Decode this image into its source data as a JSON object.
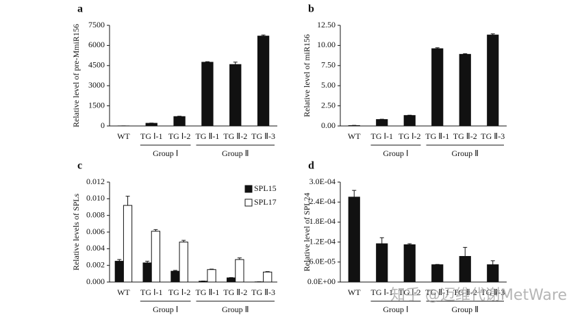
{
  "chart_data": [
    {
      "type": "bar",
      "panel": "a",
      "ylabel": "Relative level of pre-MmiR156",
      "categories": [
        "WT",
        "TG Ⅰ-1",
        "TG Ⅰ-2",
        "TG Ⅱ-1",
        "TG Ⅱ-2",
        "TG Ⅱ-3"
      ],
      "values": [
        5,
        200,
        700,
        4750,
        4580,
        6700
      ],
      "errors": [
        2,
        15,
        30,
        40,
        180,
        80
      ],
      "color": "#111111",
      "ylim": [
        0,
        7500
      ],
      "yticks": [
        0,
        1500,
        3000,
        4500,
        6000,
        7500
      ],
      "groups": [
        {
          "label": "Group Ⅰ",
          "categories": [
            "TG Ⅰ-1",
            "TG Ⅰ-2"
          ]
        },
        {
          "label": "Group Ⅱ",
          "categories": [
            "TG Ⅱ-1",
            "TG Ⅱ-2",
            "TG Ⅱ-3"
          ]
        }
      ]
    },
    {
      "type": "bar",
      "panel": "b",
      "ylabel": "Relative level of miR156",
      "categories": [
        "WT",
        "TG Ⅰ-1",
        "TG Ⅰ-2",
        "TG Ⅱ-1",
        "TG Ⅱ-2",
        "TG Ⅱ-3"
      ],
      "values": [
        0.05,
        0.8,
        1.3,
        9.6,
        8.9,
        11.3
      ],
      "errors": [
        0.02,
        0.04,
        0.04,
        0.12,
        0.08,
        0.15
      ],
      "color": "#111111",
      "ylim": [
        0,
        12.5
      ],
      "yticks": [
        {
          "value": 0,
          "label": "0.00"
        },
        {
          "value": 2.5,
          "label": "2.50"
        },
        {
          "value": 5,
          "label": "5.00"
        },
        {
          "value": 7.5,
          "label": "7.50"
        },
        {
          "value": 10,
          "label": "10.00"
        },
        {
          "value": 12.5,
          "label": "12.50"
        }
      ],
      "groups": [
        {
          "label": "Group Ⅰ",
          "categories": [
            "TG Ⅰ-1",
            "TG Ⅰ-2"
          ]
        },
        {
          "label": "Group Ⅱ",
          "categories": [
            "TG Ⅱ-1",
            "TG Ⅱ-2",
            "TG Ⅱ-3"
          ]
        }
      ]
    },
    {
      "type": "bar",
      "panel": "c",
      "ylabel": "Relative levels of SPLs",
      "categories": [
        "WT",
        "TG Ⅰ-1",
        "TG Ⅰ-2",
        "TG Ⅱ-1",
        "TG Ⅱ-2",
        "TG Ⅱ-3"
      ],
      "series": [
        {
          "name": "SPL15",
          "color": "#111111",
          "values": [
            0.0025,
            0.0023,
            0.0013,
            0.0001,
            0.0005,
            2e-05
          ],
          "errors": [
            0.0002,
            0.0002,
            0.0001,
            2e-05,
            3e-05,
            1e-05
          ]
        },
        {
          "name": "SPL17",
          "color": "#ffffff",
          "values": [
            0.0092,
            0.0061,
            0.0048,
            0.0015,
            0.0027,
            0.0012
          ],
          "errors": [
            0.0011,
            0.0002,
            0.0002,
            5e-05,
            0.0002,
            5e-05
          ]
        }
      ],
      "legend": "upper right",
      "ylim": [
        0,
        0.012
      ],
      "yticks": [
        {
          "value": 0,
          "label": "0.000"
        },
        {
          "value": 0.002,
          "label": "0.002"
        },
        {
          "value": 0.004,
          "label": "0.004"
        },
        {
          "value": 0.006,
          "label": "0.006"
        },
        {
          "value": 0.008,
          "label": "0.008"
        },
        {
          "value": 0.01,
          "label": "0.010"
        },
        {
          "value": 0.012,
          "label": "0.012"
        }
      ],
      "groups": [
        {
          "label": "Group Ⅰ",
          "categories": [
            "TG Ⅰ-1",
            "TG Ⅰ-2"
          ]
        },
        {
          "label": "Group Ⅱ",
          "categories": [
            "TG Ⅱ-1",
            "TG Ⅱ-2",
            "TG Ⅱ-3"
          ]
        }
      ]
    },
    {
      "type": "bar",
      "panel": "d",
      "ylabel": "Relative level of SPL24",
      "categories": [
        "WT",
        "TG Ⅰ-1",
        "TG Ⅰ-2",
        "TG Ⅱ-1",
        "TG Ⅱ-2",
        "TG Ⅱ-3"
      ],
      "values": [
        0.000255,
        0.000115,
        0.000112,
        5.2e-05,
        7.7e-05,
        5.2e-05
      ],
      "errors": [
        2e-05,
        1.8e-05,
        3e-06,
        1e-06,
        2.7e-05,
        1.2e-05
      ],
      "color": "#111111",
      "ylim": [
        0,
        0.0003
      ],
      "yticks": [
        {
          "value": 0,
          "label": "0.0E+00"
        },
        {
          "value": 6e-05,
          "label": "6.0E-05"
        },
        {
          "value": 0.00012,
          "label": "1.2E-04"
        },
        {
          "value": 0.00018,
          "label": "1.8E-04"
        },
        {
          "value": 0.00024,
          "label": "2.4E-04"
        },
        {
          "value": 0.0003,
          "label": "3.0E-04"
        }
      ],
      "groups": [
        {
          "label": "Group Ⅰ",
          "categories": [
            "TG Ⅰ-1",
            "TG Ⅰ-2"
          ]
        },
        {
          "label": "Group Ⅱ",
          "categories": [
            "TG Ⅱ-1",
            "TG Ⅱ-2",
            "TG Ⅱ-3"
          ]
        }
      ],
      "watermark": "知乎 @迈维代谢MetWare"
    }
  ]
}
